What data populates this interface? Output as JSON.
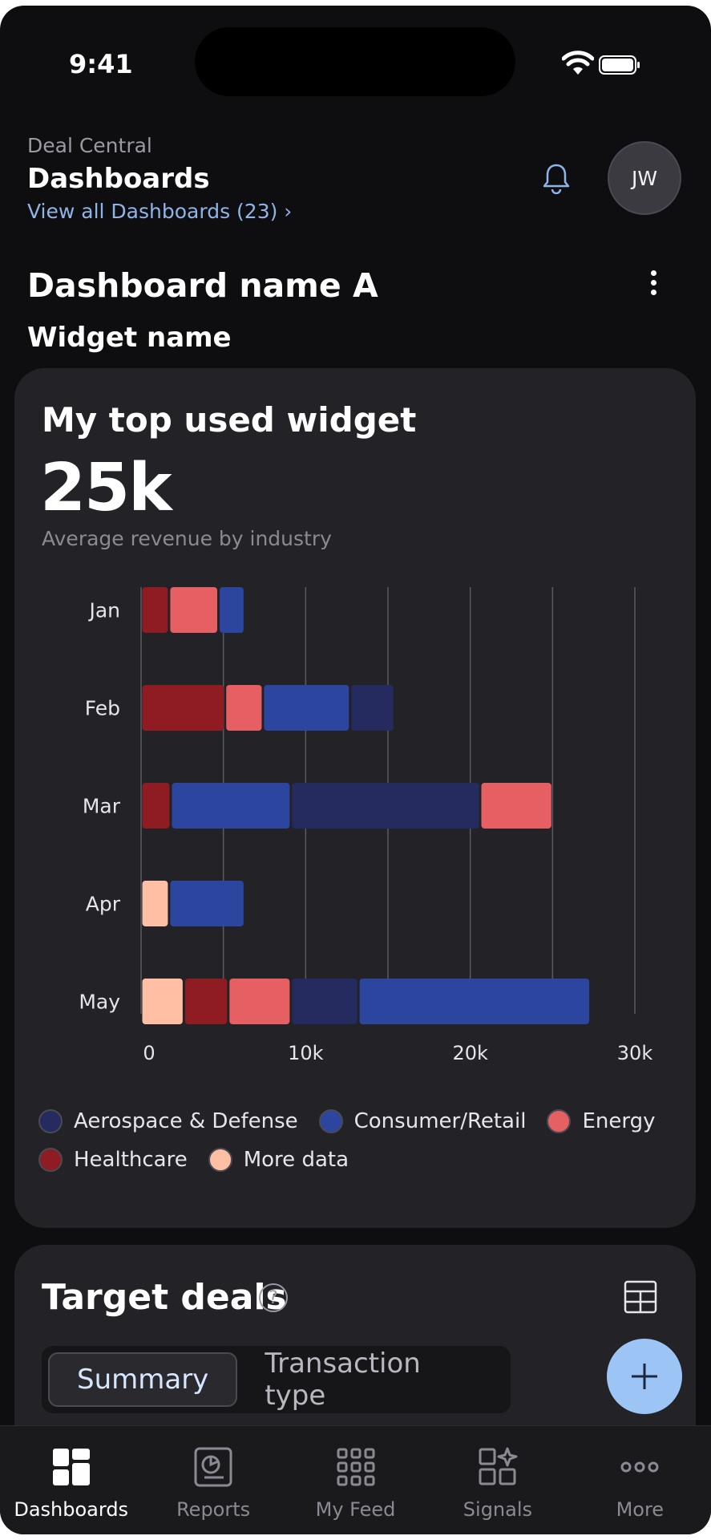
{
  "status": {
    "time": "9:41"
  },
  "header": {
    "subtitle": "Deal Central",
    "title": "Dashboards",
    "view_all": "View all Dashboards (23) ›",
    "avatar_initials": "JW"
  },
  "dashboard": {
    "name": "Dashboard name A",
    "widget_name": "Widget name"
  },
  "widget": {
    "title": "My top used widget",
    "value": "25k",
    "caption": "Average revenue by industry"
  },
  "chart_data": {
    "type": "bar",
    "orientation": "horizontal",
    "stacked": true,
    "categories": [
      "Jan",
      "Feb",
      "Mar",
      "Apr",
      "May"
    ],
    "x_ticks": [
      "0",
      "10k",
      "20k",
      "30k"
    ],
    "xlim": [
      0,
      30000
    ],
    "grid": true,
    "legend_position": "bottom",
    "series": [
      {
        "name": "Aerospace & Defense",
        "color": "#252b5e"
      },
      {
        "name": "Consumer/Retail",
        "color": "#2c46a0"
      },
      {
        "name": "Energy",
        "color": "#e65f63"
      },
      {
        "name": "Healthcare",
        "color": "#8e1c22"
      },
      {
        "name": "More data",
        "color": "#ffbfa5"
      }
    ],
    "bars": [
      {
        "category": "Jan",
        "segments": [
          {
            "series": "Healthcare",
            "value": 1700
          },
          {
            "series": "Energy",
            "value": 3000
          },
          {
            "series": "Consumer/Retail",
            "value": 1600
          }
        ]
      },
      {
        "category": "Feb",
        "segments": [
          {
            "series": "Healthcare",
            "value": 5100
          },
          {
            "series": "Energy",
            "value": 2300
          },
          {
            "series": "Consumer/Retail",
            "value": 5300
          },
          {
            "series": "Aerospace & Defense",
            "value": 2700
          }
        ]
      },
      {
        "category": "Mar",
        "segments": [
          {
            "series": "Healthcare",
            "value": 1800
          },
          {
            "series": "Consumer/Retail",
            "value": 7300
          },
          {
            "series": "Aerospace & Defense",
            "value": 11500
          },
          {
            "series": "Energy",
            "value": 4400
          }
        ]
      },
      {
        "category": "Apr",
        "segments": [
          {
            "series": "More data",
            "value": 1700
          },
          {
            "series": "Consumer/Retail",
            "value": 4600
          }
        ]
      },
      {
        "category": "May",
        "segments": [
          {
            "series": "More data",
            "value": 2600
          },
          {
            "series": "Healthcare",
            "value": 2700
          },
          {
            "series": "Energy",
            "value": 3800
          },
          {
            "series": "Aerospace & Defense",
            "value": 4100
          },
          {
            "series": "Consumer/Retail",
            "value": 14100
          }
        ]
      }
    ]
  },
  "target_deals": {
    "title": "Target deals",
    "help": "?",
    "segments": [
      "Summary",
      "Transaction type"
    ]
  },
  "tabbar": {
    "items": [
      {
        "label": "Dashboards",
        "icon": "dashboards-icon",
        "active": true
      },
      {
        "label": "Reports",
        "icon": "reports-icon",
        "active": false
      },
      {
        "label": "My Feed",
        "icon": "feed-grid-icon",
        "active": false
      },
      {
        "label": "Signals",
        "icon": "signals-icon",
        "active": false
      },
      {
        "label": "More",
        "icon": "more-dots-icon",
        "active": false
      }
    ]
  }
}
